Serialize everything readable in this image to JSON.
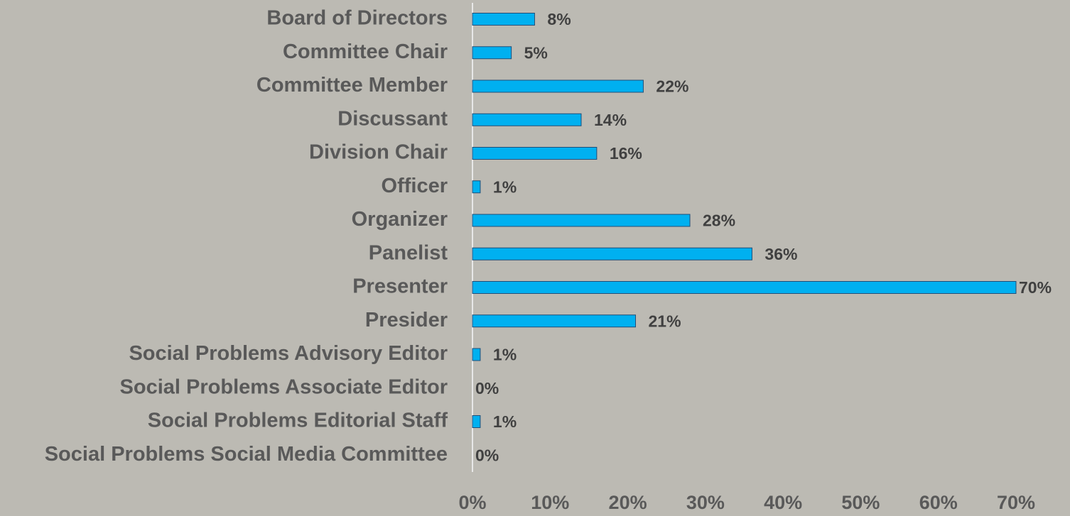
{
  "chart_data": {
    "type": "bar",
    "orientation": "horizontal",
    "categories": [
      "Board of Directors",
      "Committee Chair",
      "Committee Member",
      "Discussant",
      "Division Chair",
      "Officer",
      "Organizer",
      "Panelist",
      "Presenter",
      "Presider",
      "Social Problems Advisory Editor",
      "Social Problems Associate Editor",
      "Social Problems Editorial Staff",
      "Social Problems Social Media Committee"
    ],
    "values": [
      8,
      5,
      22,
      14,
      16,
      1,
      28,
      36,
      70,
      21,
      1,
      0,
      1,
      0
    ],
    "value_labels": [
      "8%",
      "5%",
      "22%",
      "14%",
      "16%",
      "1%",
      "28%",
      "36%",
      "70%",
      "21%",
      "1%",
      "0%",
      "1%",
      "0%"
    ],
    "color": "#00b0f0",
    "xlim": [
      0,
      70
    ],
    "xticks": [
      {
        "value": 0,
        "label": "0%"
      },
      {
        "value": 10,
        "label": "10%"
      },
      {
        "value": 20,
        "label": "20%"
      },
      {
        "value": 30,
        "label": "30%"
      },
      {
        "value": 40,
        "label": "40%"
      },
      {
        "value": 50,
        "label": "50%"
      },
      {
        "value": 60,
        "label": "60%"
      },
      {
        "value": 70,
        "label": "70%"
      }
    ],
    "grid": false
  }
}
